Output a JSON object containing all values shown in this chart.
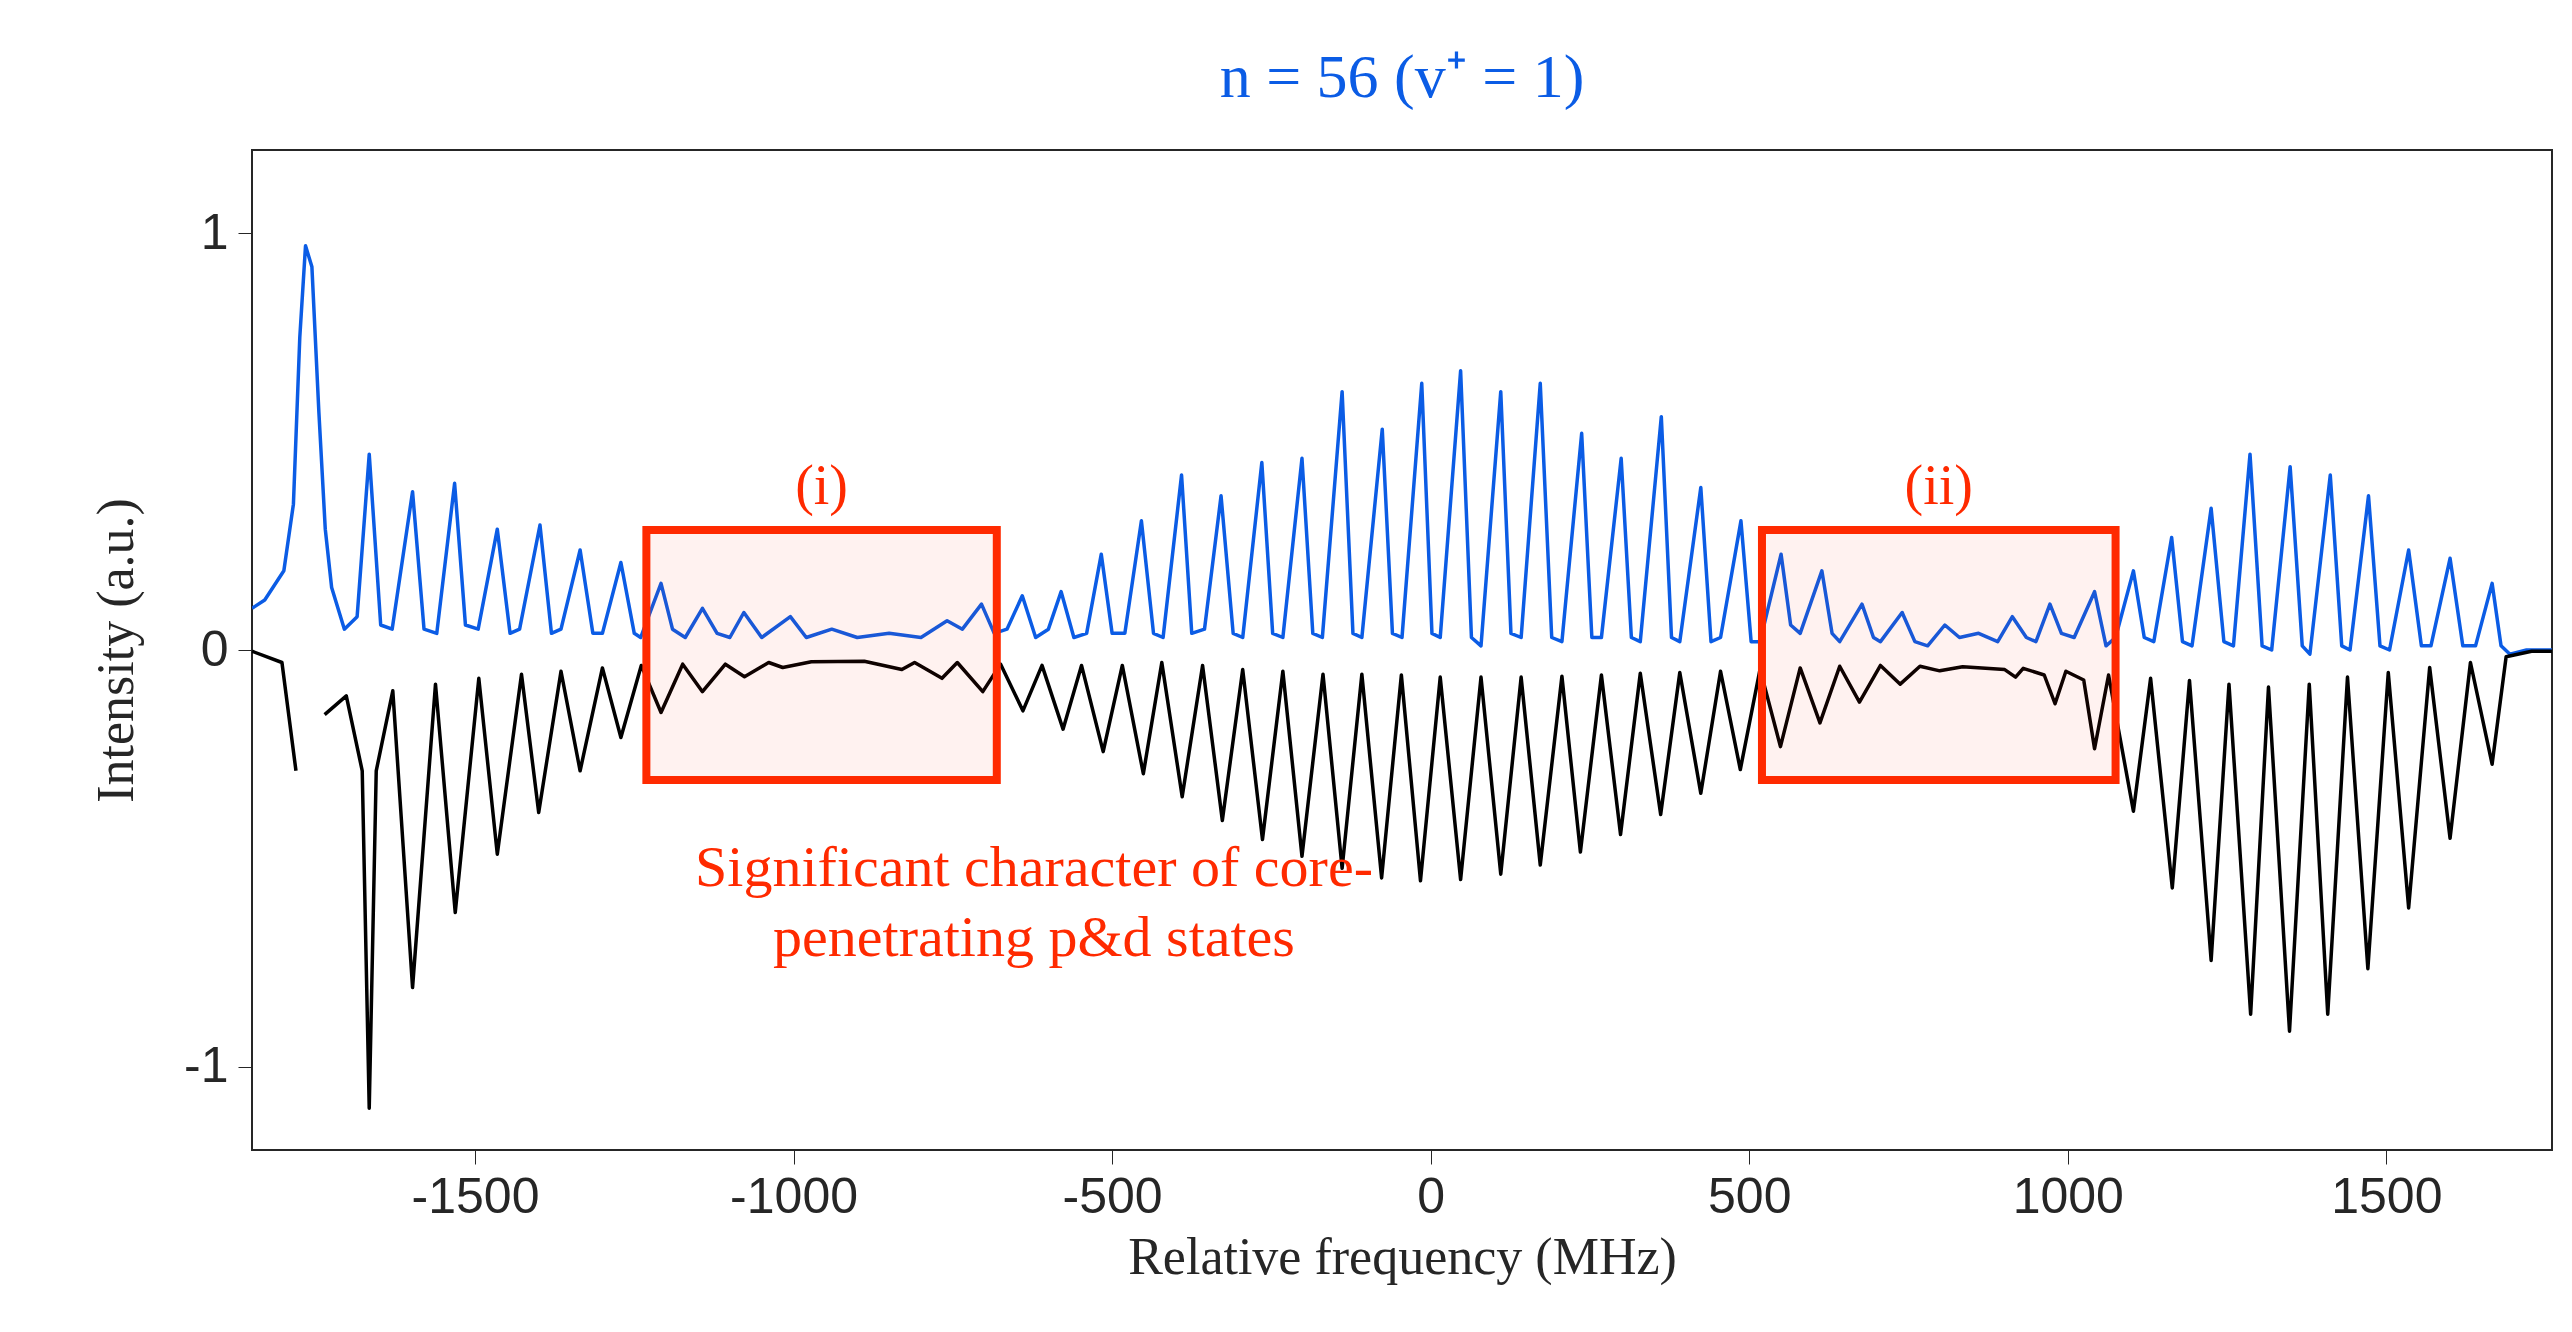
{
  "chart_data": {
    "type": "line",
    "title": "n = 56 (v⁺ = 1)",
    "xlabel": "Relative frequency (MHz)",
    "ylabel": "Intensity (a.u.)",
    "xlim": [
      -1850,
      1760
    ],
    "ylim": [
      -1.2,
      1.2
    ],
    "xticks": [
      -1500,
      -1000,
      -500,
      0,
      500,
      1000,
      1500
    ],
    "yticks": [
      -1,
      0,
      1
    ],
    "grid": false,
    "legend": false,
    "series": [
      {
        "color": "#0b5ce5",
        "x": [
          -1850,
          -1830,
          -1800,
          -1785,
          -1775,
          -1766,
          -1756,
          -1745,
          -1735,
          -1725,
          -1705,
          -1685,
          -1666,
          -1648,
          -1630,
          -1598,
          -1580,
          -1560,
          -1532,
          -1515,
          -1495,
          -1465,
          -1445,
          -1430,
          -1398,
          -1380,
          -1365,
          -1335,
          -1315,
          -1300,
          -1271,
          -1250,
          -1240,
          -1208,
          -1190,
          -1170,
          -1143,
          -1120,
          -1100,
          -1078,
          -1050,
          -1005,
          -980,
          -940,
          -900,
          -850,
          -800,
          -759,
          -735,
          -705,
          -685,
          -665,
          -641,
          -620,
          -600,
          -580,
          -560,
          -540,
          -517,
          -500,
          -480,
          -454,
          -435,
          -420,
          -391,
          -375,
          -355,
          -329,
          -310,
          -295,
          -265,
          -248,
          -232,
          -202,
          -185,
          -170,
          -139,
          -122,
          -108,
          -76,
          -60,
          -45,
          -14,
          2,
          15,
          47,
          64,
          79,
          110,
          126,
          142,
          172,
          190,
          206,
          237,
          253,
          268,
          299,
          315,
          329,
          362,
          378,
          391,
          424,
          440,
          455,
          487,
          503,
          517,
          550,
          565,
          580,
          614,
          630,
          642,
          677,
          695,
          706,
          740,
          760,
          780,
          807,
          830,
          860,
          890,
          913,
          935,
          950,
          972,
          990,
          1010,
          1042,
          1060,
          1075,
          1103,
          1120,
          1135,
          1163,
          1180,
          1195,
          1225,
          1245,
          1260,
          1286,
          1305,
          1320,
          1349,
          1368,
          1380,
          1412,
          1430,
          1443,
          1472,
          1490,
          1505,
          1535,
          1555,
          1570,
          1600,
          1620,
          1640,
          1666,
          1680,
          1694,
          1720,
          1760
        ],
        "values": [
          0.1,
          0.12,
          0.19,
          0.35,
          0.75,
          0.97,
          0.92,
          0.57,
          0.29,
          0.15,
          0.05,
          0.08,
          0.47,
          0.06,
          0.05,
          0.38,
          0.05,
          0.04,
          0.4,
          0.06,
          0.05,
          0.29,
          0.04,
          0.05,
          0.3,
          0.04,
          0.05,
          0.24,
          0.04,
          0.04,
          0.21,
          0.04,
          0.03,
          0.16,
          0.05,
          0.03,
          0.1,
          0.04,
          0.03,
          0.09,
          0.03,
          0.08,
          0.03,
          0.05,
          0.03,
          0.04,
          0.03,
          0.07,
          0.05,
          0.11,
          0.04,
          0.05,
          0.13,
          0.03,
          0.05,
          0.14,
          0.03,
          0.04,
          0.23,
          0.04,
          0.04,
          0.31,
          0.04,
          0.03,
          0.42,
          0.04,
          0.05,
          0.37,
          0.04,
          0.03,
          0.45,
          0.04,
          0.03,
          0.46,
          0.04,
          0.03,
          0.62,
          0.04,
          0.03,
          0.53,
          0.04,
          0.03,
          0.64,
          0.04,
          0.03,
          0.67,
          0.03,
          0.01,
          0.62,
          0.04,
          0.03,
          0.64,
          0.03,
          0.02,
          0.52,
          0.03,
          0.03,
          0.46,
          0.03,
          0.02,
          0.56,
          0.03,
          0.02,
          0.39,
          0.02,
          0.03,
          0.31,
          0.02,
          0.02,
          0.23,
          0.06,
          0.04,
          0.19,
          0.04,
          0.02,
          0.11,
          0.03,
          0.02,
          0.09,
          0.02,
          0.01,
          0.06,
          0.03,
          0.04,
          0.02,
          0.08,
          0.03,
          0.02,
          0.11,
          0.04,
          0.03,
          0.14,
          0.01,
          0.03,
          0.19,
          0.03,
          0.02,
          0.27,
          0.02,
          0.01,
          0.34,
          0.02,
          0.01,
          0.47,
          0.01,
          0.0,
          0.44,
          0.01,
          -0.01,
          0.42,
          0.01,
          0.0,
          0.37,
          0.01,
          0.0,
          0.24,
          0.01,
          0.01,
          0.22,
          0.01,
          0.01,
          0.16,
          0.01,
          -0.01,
          0.0,
          0.0
        ]
      },
      {
        "color": "#000000",
        "x": [
          -1850,
          -1803,
          -1781,
          -1770,
          -1759,
          -1749,
          -1736,
          -1702,
          -1677,
          -1666,
          -1655,
          -1629,
          -1598,
          -1562,
          -1531,
          -1494,
          -1465,
          -1427,
          -1400,
          -1365,
          -1335,
          -1300,
          -1271,
          -1239,
          -1208,
          -1174,
          -1143,
          -1107,
          -1077,
          -1039,
          -1017,
          -972,
          -889,
          -830,
          -810,
          -767,
          -743,
          -703,
          -675,
          -640,
          -610,
          -577,
          -548,
          -514,
          -484,
          -451,
          -422,
          -390,
          -358,
          -327,
          -295,
          -264,
          -232,
          -202,
          -169,
          -139,
          -108,
          -77,
          -46,
          -16,
          15,
          47,
          79,
          110,
          142,
          172,
          206,
          235,
          268,
          298,
          329,
          361,
          391,
          424,
          455,
          486,
          517,
          549,
          580,
          611,
          642,
          673,
          706,
          737,
          768,
          799,
          835,
          901,
          918,
          930,
          963,
          980,
          997,
          1025,
          1042,
          1064,
          1103,
          1130,
          1164,
          1191,
          1225,
          1253,
          1287,
          1315,
          1348,
          1379,
          1408,
          1439,
          1471,
          1503,
          1535,
          1568,
          1600,
          1632,
          1666,
          1688,
          1728,
          1760
        ],
        "values": [
          -0.003,
          -0.03,
          -0.29,
          null,
          null,
          null,
          -0.155,
          -0.11,
          -0.29,
          -1.1,
          -0.29,
          -0.098,
          -0.81,
          -0.082,
          -0.63,
          -0.068,
          -0.49,
          -0.058,
          -0.39,
          -0.051,
          -0.29,
          -0.043,
          -0.21,
          -0.037,
          -0.15,
          -0.034,
          -0.1,
          -0.034,
          -0.064,
          -0.03,
          -0.042,
          -0.028,
          -0.027,
          -0.047,
          -0.03,
          -0.068,
          -0.03,
          -0.1,
          -0.034,
          -0.146,
          -0.037,
          -0.19,
          -0.037,
          -0.244,
          -0.037,
          -0.297,
          -0.03,
          -0.352,
          -0.037,
          -0.409,
          -0.047,
          -0.455,
          -0.051,
          -0.495,
          -0.058,
          -0.524,
          -0.058,
          -0.547,
          -0.06,
          -0.554,
          -0.065,
          -0.551,
          -0.065,
          -0.538,
          -0.065,
          -0.516,
          -0.063,
          -0.485,
          -0.06,
          -0.443,
          -0.056,
          -0.395,
          -0.054,
          -0.344,
          -0.051,
          -0.287,
          -0.046,
          -0.232,
          -0.043,
          -0.175,
          -0.039,
          -0.125,
          -0.037,
          -0.082,
          -0.039,
          -0.05,
          -0.04,
          -0.047,
          -0.065,
          -0.044,
          -0.06,
          -0.129,
          -0.051,
          -0.072,
          -0.237,
          -0.06,
          -0.387,
          -0.068,
          -0.571,
          -0.073,
          -0.745,
          -0.082,
          -0.874,
          -0.089,
          -0.915,
          -0.082,
          -0.874,
          -0.065,
          -0.765,
          -0.054,
          -0.619,
          -0.042,
          -0.452,
          -0.03,
          -0.274,
          -0.016,
          -0.003,
          -0.003
        ]
      }
    ],
    "bands": [
      {
        "axis": "x",
        "from": -1231,
        "to": -681,
        "label": "(i)",
        "color": "#ff2a00"
      },
      {
        "axis": "x",
        "from": 520,
        "to": 1075,
        "label": "(ii)",
        "color": "#ff2a00"
      }
    ],
    "annotations": [
      "Significant character of core-\npenetrating p&d states"
    ]
  }
}
